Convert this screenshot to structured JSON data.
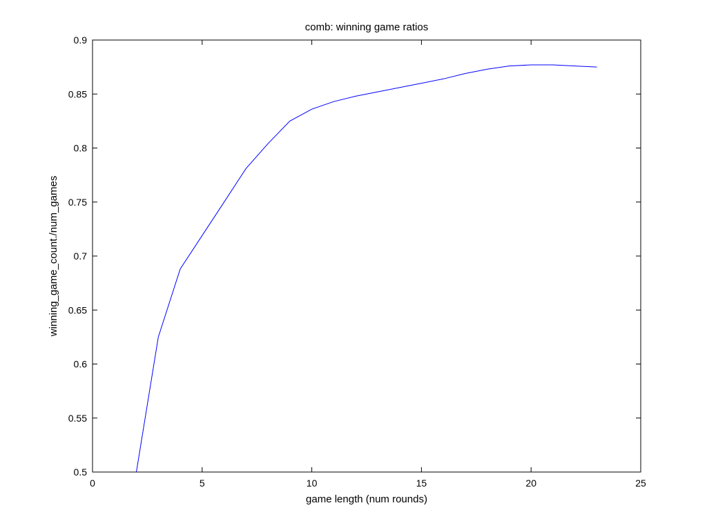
{
  "chart_data": {
    "type": "line",
    "title": "comb: winning game ratios",
    "xlabel": "game length (num rounds)",
    "ylabel": "winning_game_count./num_games",
    "xlim": [
      0,
      25
    ],
    "ylim": [
      0.5,
      0.9
    ],
    "x_ticks": [
      0,
      5,
      10,
      15,
      20,
      25
    ],
    "y_ticks": [
      0.5,
      0.55,
      0.6,
      0.65,
      0.7,
      0.75,
      0.8,
      0.85,
      0.9
    ],
    "x_tick_labels": [
      "0",
      "5",
      "10",
      "15",
      "20",
      "25"
    ],
    "y_tick_labels": [
      "0.5",
      "0.55",
      "0.6",
      "0.65",
      "0.7",
      "0.75",
      "0.8",
      "0.85",
      "0.9"
    ],
    "grid": false,
    "series": [
      {
        "color": "#0000ff",
        "x": [
          2,
          3,
          4,
          5,
          6,
          7,
          8,
          9,
          10,
          11,
          12,
          13,
          14,
          15,
          16,
          17,
          18,
          19,
          20,
          21,
          22,
          23
        ],
        "y": [
          0.5,
          0.625,
          0.688,
          0.719,
          0.75,
          0.781,
          0.804,
          0.825,
          0.836,
          0.843,
          0.848,
          0.852,
          0.856,
          0.86,
          0.864,
          0.869,
          0.873,
          0.876,
          0.877,
          0.877,
          0.876,
          0.875
        ]
      }
    ]
  }
}
